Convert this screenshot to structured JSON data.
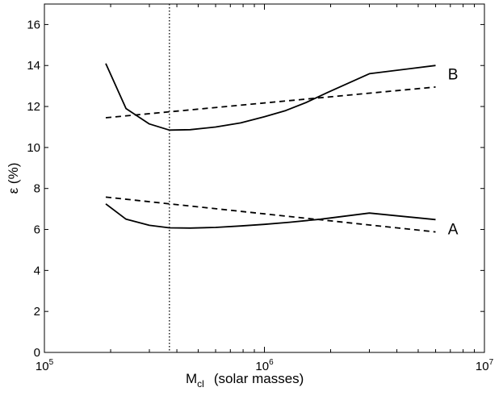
{
  "chart_data": {
    "type": "line",
    "xscale": "log",
    "xlim": [
      100000,
      10000000
    ],
    "ylim": [
      0,
      17
    ],
    "grid": false,
    "xlabel": {
      "base": "M",
      "subscript": "cl",
      "rest": "(solar masses)"
    },
    "ylabel": "ε (%)",
    "x_ticks": [
      {
        "base": "10",
        "exp": "5",
        "value": 100000
      },
      {
        "base": "10",
        "exp": "6",
        "value": 1000000
      },
      {
        "base": "10",
        "exp": "7",
        "value": 10000000
      }
    ],
    "y_ticks": [
      0,
      2,
      4,
      6,
      8,
      10,
      12,
      14,
      16
    ],
    "vertical_line": {
      "x": 370000,
      "style": "dotted"
    },
    "series": [
      {
        "name": "B",
        "style": "solid",
        "x": [
          190000,
          235000,
          300000,
          370000,
          460000,
          600000,
          780000,
          1000000,
          1250000,
          1550000,
          1950000,
          3000000,
          6000000
        ],
        "y": [
          14.1,
          11.9,
          11.15,
          10.85,
          10.87,
          11.0,
          11.2,
          11.5,
          11.8,
          12.2,
          12.7,
          13.6,
          14.0
        ]
      },
      {
        "name": "B",
        "style": "dashed",
        "x": [
          190000,
          6000000
        ],
        "y": [
          11.45,
          12.95
        ]
      },
      {
        "name": "A",
        "style": "solid",
        "x": [
          190000,
          235000,
          300000,
          370000,
          460000,
          600000,
          780000,
          1000000,
          1300000,
          1800000,
          3000000,
          6000000
        ],
        "y": [
          7.25,
          6.5,
          6.2,
          6.08,
          6.07,
          6.1,
          6.17,
          6.25,
          6.35,
          6.5,
          6.8,
          6.48
        ]
      },
      {
        "name": "A",
        "style": "dashed",
        "x": [
          190000,
          6000000
        ],
        "y": [
          7.58,
          5.88
        ]
      }
    ],
    "annotations": [
      {
        "text": "B",
        "x": 7200000,
        "y": 13.6
      },
      {
        "text": "A",
        "x": 7200000,
        "y": 6.05
      }
    ]
  }
}
